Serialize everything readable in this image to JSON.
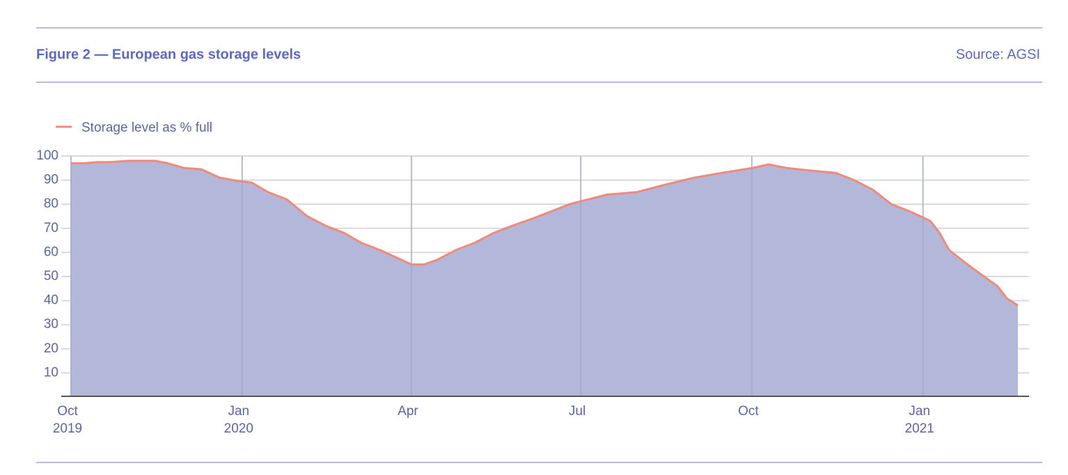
{
  "header": {
    "title": "Figure 2 — European gas storage levels",
    "source": "Source:  AGSI"
  },
  "chart_data": {
    "type": "area",
    "series": [
      {
        "name": "Storage level as % full",
        "color": "#f08a7b",
        "fill": "#b3b8da",
        "x": [
          "2019-10-01",
          "2019-10-08",
          "2019-10-15",
          "2019-10-22",
          "2019-11-01",
          "2019-11-15",
          "2019-11-22",
          "2019-12-01",
          "2019-12-10",
          "2019-12-20",
          "2019-12-31",
          "2020-01-06",
          "2020-01-15",
          "2020-01-25",
          "2020-02-05",
          "2020-02-15",
          "2020-02-25",
          "2020-03-05",
          "2020-03-15",
          "2020-03-25",
          "2020-04-01",
          "2020-04-08",
          "2020-04-15",
          "2020-04-25",
          "2020-05-05",
          "2020-05-15",
          "2020-05-25",
          "2020-06-05",
          "2020-06-15",
          "2020-06-25",
          "2020-07-05",
          "2020-07-15",
          "2020-07-31",
          "2020-08-15",
          "2020-08-31",
          "2020-09-15",
          "2020-10-01",
          "2020-10-10",
          "2020-10-20",
          "2020-11-01",
          "2020-11-15",
          "2020-11-25",
          "2020-12-05",
          "2020-12-15",
          "2020-12-25",
          "2021-01-01",
          "2021-01-05",
          "2021-01-10",
          "2021-01-15",
          "2021-01-25",
          "2021-02-01",
          "2021-02-10",
          "2021-02-15",
          "2021-02-21"
        ],
        "values": [
          97,
          97,
          97.5,
          97.5,
          98,
          98,
          97,
          95,
          94.5,
          91,
          89.5,
          89,
          85,
          82,
          75,
          71,
          68,
          64,
          61,
          57.5,
          55,
          55,
          57,
          61,
          64,
          68,
          71,
          74,
          77,
          80,
          82,
          84,
          85,
          88,
          91,
          93,
          95,
          96.5,
          95,
          94,
          93,
          90,
          86,
          80,
          77,
          74.5,
          73,
          68,
          61,
          55,
          51,
          46,
          41,
          38
        ]
      }
    ],
    "xlim": [
      "2019-10-01",
      "2021-02-27"
    ],
    "xticks": [
      {
        "value": "2019-10-01",
        "label": "Oct",
        "year": "2019"
      },
      {
        "value": "2020-01-01",
        "label": "Jan",
        "year": "2020"
      },
      {
        "value": "2020-04-01",
        "label": "Apr"
      },
      {
        "value": "2020-07-01",
        "label": "Jul"
      },
      {
        "value": "2020-10-01",
        "label": "Oct"
      },
      {
        "value": "2021-01-01",
        "label": "Jan",
        "year": "2021"
      }
    ],
    "ylim": [
      0,
      100
    ],
    "yticks": [
      10,
      20,
      30,
      40,
      50,
      60,
      70,
      80,
      90,
      100
    ],
    "grid": true
  }
}
